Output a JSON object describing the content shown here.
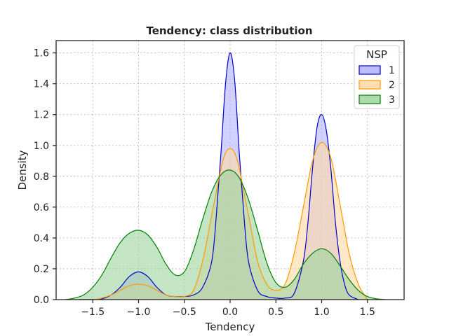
{
  "chart_data": {
    "type": "area",
    "title": "Tendency: class distribution",
    "xlabel": "Tendency",
    "ylabel": "Density",
    "xlim": [
      -1.9,
      1.9
    ],
    "ylim": [
      0,
      1.68
    ],
    "xticks": [
      -1.5,
      -1.0,
      -0.5,
      0.0,
      0.5,
      1.0,
      1.5
    ],
    "xtick_labels": [
      "−1.5",
      "−1.0",
      "−0.5",
      "0.0",
      "0.5",
      "1.0",
      "1.5"
    ],
    "yticks": [
      0.0,
      0.2,
      0.4,
      0.6,
      0.8,
      1.0,
      1.2,
      1.4,
      1.6
    ],
    "ytick_labels": [
      "0.0",
      "0.2",
      "0.4",
      "0.6",
      "0.8",
      "1.0",
      "1.2",
      "1.4",
      "1.6"
    ],
    "grid": true,
    "legend": {
      "title": "NSP",
      "placement": "top-right"
    },
    "series": [
      {
        "name": "1",
        "color": "#0000cc",
        "fill": "#b3b3ff",
        "x": [
          -1.65,
          -1.5,
          -1.4,
          -1.3,
          -1.2,
          -1.1,
          -1.0,
          -0.9,
          -0.8,
          -0.7,
          -0.6,
          -0.5,
          -0.4,
          -0.3,
          -0.2,
          -0.15,
          -0.1,
          -0.05,
          0.0,
          0.05,
          0.1,
          0.15,
          0.2,
          0.3,
          0.4,
          0.5,
          0.6,
          0.7,
          0.8,
          0.85,
          0.9,
          0.95,
          1.0,
          1.05,
          1.1,
          1.15,
          1.2,
          1.25,
          1.3,
          1.4
        ],
        "y": [
          0.0,
          0.0,
          0.005,
          0.03,
          0.08,
          0.15,
          0.18,
          0.15,
          0.08,
          0.03,
          0.02,
          0.02,
          0.03,
          0.08,
          0.25,
          0.55,
          0.95,
          1.4,
          1.6,
          1.42,
          0.95,
          0.55,
          0.25,
          0.06,
          0.02,
          0.01,
          0.01,
          0.04,
          0.25,
          0.5,
          0.85,
          1.12,
          1.2,
          1.1,
          0.85,
          0.5,
          0.25,
          0.1,
          0.03,
          0.0
        ]
      },
      {
        "name": "2",
        "color": "#ff9900",
        "fill": "#ffd9a3",
        "x": [
          -1.65,
          -1.5,
          -1.4,
          -1.3,
          -1.2,
          -1.1,
          -1.0,
          -0.9,
          -0.8,
          -0.7,
          -0.6,
          -0.5,
          -0.4,
          -0.3,
          -0.2,
          -0.1,
          -0.05,
          0.0,
          0.05,
          0.1,
          0.2,
          0.3,
          0.4,
          0.5,
          0.6,
          0.7,
          0.8,
          0.9,
          1.0,
          1.1,
          1.2,
          1.3,
          1.4,
          1.5
        ],
        "y": [
          0.0,
          0.0,
          0.01,
          0.03,
          0.06,
          0.09,
          0.1,
          0.09,
          0.06,
          0.03,
          0.02,
          0.02,
          0.06,
          0.25,
          0.55,
          0.85,
          0.95,
          0.98,
          0.95,
          0.85,
          0.55,
          0.25,
          0.1,
          0.06,
          0.1,
          0.3,
          0.6,
          0.9,
          1.02,
          0.92,
          0.62,
          0.3,
          0.1,
          0.0
        ]
      },
      {
        "name": "3",
        "color": "#008000",
        "fill": "#9dd49d",
        "x": [
          -1.8,
          -1.7,
          -1.6,
          -1.5,
          -1.4,
          -1.3,
          -1.2,
          -1.1,
          -1.0,
          -0.9,
          -0.8,
          -0.7,
          -0.6,
          -0.5,
          -0.4,
          -0.3,
          -0.2,
          -0.1,
          0.0,
          0.1,
          0.2,
          0.3,
          0.4,
          0.5,
          0.6,
          0.7,
          0.8,
          0.9,
          1.0,
          1.1,
          1.2,
          1.3,
          1.4,
          1.5,
          1.6,
          1.7
        ],
        "y": [
          0.0,
          0.01,
          0.03,
          0.08,
          0.16,
          0.27,
          0.37,
          0.43,
          0.45,
          0.42,
          0.34,
          0.23,
          0.16,
          0.18,
          0.32,
          0.52,
          0.7,
          0.81,
          0.84,
          0.79,
          0.65,
          0.45,
          0.24,
          0.11,
          0.08,
          0.13,
          0.23,
          0.3,
          0.33,
          0.3,
          0.22,
          0.13,
          0.06,
          0.02,
          0.005,
          0.0
        ]
      }
    ]
  }
}
